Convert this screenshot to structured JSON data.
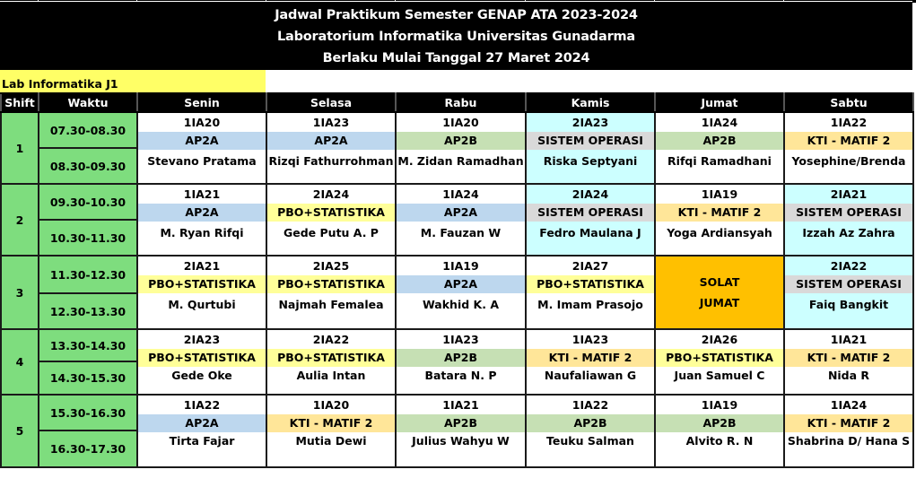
{
  "title": {
    "line1": "Jadwal Praktikum Semester GENAP ATA 2023-2024",
    "line2": "Laboratorium Informatika Universitas Gunadarma",
    "line3": "Berlaku Mulai Tanggal 27 Maret 2024"
  },
  "lab_label": "Lab Informatika J1",
  "headers": [
    "Shift",
    "Waktu",
    "Senin",
    "Selasa",
    "Rabu",
    "Kamis",
    "Jumat",
    "Sabtu"
  ],
  "colors": {
    "header_bg": "#000000",
    "time_bg": "#7edd7e",
    "lab_label_bg": "#ffff66",
    "AP2A": "#bdd7ee",
    "AP2B": "#c6e0b4",
    "SISTEM OPERASI": "#d9d9d9",
    "PBO+STATISTIKA": "#ffff99",
    "KTI - MATIF 2": "#ffe699",
    "kamis_cell_bg": "#ccffff",
    "solat_bg": "#ffc000"
  },
  "shifts": [
    {
      "number": "1",
      "times": [
        "07.30-08.30",
        "08.30-09.30"
      ],
      "slots": [
        {
          "day": "Senin",
          "class": "1IA20",
          "subject": "AP2A",
          "lecturer": "Stevano Pratama"
        },
        {
          "day": "Selasa",
          "class": "1IA23",
          "subject": "AP2A",
          "lecturer": "Rizqi Fathurrohman"
        },
        {
          "day": "Rabu",
          "class": "1IA20",
          "subject": "AP2B",
          "lecturer": "M. Zidan  Ramadhan"
        },
        {
          "day": "Kamis",
          "class": "2IA23",
          "subject": "SISTEM OPERASI",
          "lecturer": "Riska Septyani"
        },
        {
          "day": "Jumat",
          "class": "1IA24",
          "subject": "AP2B",
          "lecturer": "Rifqi Ramadhani"
        },
        {
          "day": "Sabtu",
          "class": "1IA22",
          "subject": "KTI - MATIF 2",
          "lecturer": "Yosephine/Brenda"
        }
      ]
    },
    {
      "number": "2",
      "times": [
        "09.30-10.30",
        "10.30-11.30"
      ],
      "slots": [
        {
          "day": "Senin",
          "class": "1IA21",
          "subject": "AP2A",
          "lecturer": "M. Ryan Rifqi"
        },
        {
          "day": "Selasa",
          "class": "2IA24",
          "subject": "PBO+STATISTIKA",
          "lecturer": "Gede Putu A. P"
        },
        {
          "day": "Rabu",
          "class": "1IA24",
          "subject": "AP2A",
          "lecturer": "M. Fauzan W"
        },
        {
          "day": "Kamis",
          "class": "2IA24",
          "subject": "SISTEM OPERASI",
          "lecturer": "Fedro Maulana J"
        },
        {
          "day": "Jumat",
          "class": "1IA19",
          "subject": "KTI - MATIF 2",
          "lecturer": "Yoga Ardiansyah"
        },
        {
          "day": "Sabtu",
          "class": "2IA21",
          "subject": "SISTEM OPERASI",
          "lecturer": "Izzah Az Zahra"
        }
      ]
    },
    {
      "number": "3",
      "times": [
        "11.30-12.30",
        "12.30-13.30"
      ],
      "slots": [
        {
          "day": "Senin",
          "class": "2IA21",
          "subject": "PBO+STATISTIKA",
          "lecturer": "M. Qurtubi"
        },
        {
          "day": "Selasa",
          "class": "2IA25",
          "subject": "PBO+STATISTIKA",
          "lecturer": "Najmah Femalea"
        },
        {
          "day": "Rabu",
          "class": "1IA19",
          "subject": "AP2A",
          "lecturer": "Wakhid K. A"
        },
        {
          "day": "Kamis",
          "class": "2IA27",
          "subject": "PBO+STATISTIKA",
          "lecturer": "M. Imam Prasojo"
        },
        {
          "day": "Jumat",
          "solat": [
            "SOLAT",
            "JUMAT"
          ]
        },
        {
          "day": "Sabtu",
          "class": "2IA22",
          "subject": "SISTEM OPERASI",
          "lecturer": "Faiq Bangkit"
        }
      ]
    },
    {
      "number": "4",
      "times": [
        "13.30-14.30",
        "14.30-15.30"
      ],
      "slots": [
        {
          "day": "Senin",
          "class": "2IA23",
          "subject": "PBO+STATISTIKA",
          "lecturer": "Gede Oke"
        },
        {
          "day": "Selasa",
          "class": "2IA22",
          "subject": "PBO+STATISTIKA",
          "lecturer": "Aulia Intan"
        },
        {
          "day": "Rabu",
          "class": "1IA23",
          "subject": "AP2B",
          "lecturer": "Batara N. P"
        },
        {
          "day": "Kamis",
          "class": "1IA23",
          "subject": "KTI - MATIF 2",
          "lecturer": "Naufaliawan G"
        },
        {
          "day": "Jumat",
          "class": "2IA26",
          "subject": "PBO+STATISTIKA",
          "lecturer": "Juan Samuel C"
        },
        {
          "day": "Sabtu",
          "class": "1IA21",
          "subject": "KTI - MATIF 2",
          "lecturer": "Nida R"
        }
      ]
    },
    {
      "number": "5",
      "times": [
        "15.30-16.30",
        "16.30-17.30"
      ],
      "slots": [
        {
          "day": "Senin",
          "class": "1IA22",
          "subject": "AP2A",
          "lecturer": "Tirta Fajar"
        },
        {
          "day": "Selasa",
          "class": "1IA20",
          "subject": "KTI - MATIF 2",
          "lecturer": "Mutia Dewi"
        },
        {
          "day": "Rabu",
          "class": "1IA21",
          "subject": "AP2B",
          "lecturer": "Julius Wahyu W"
        },
        {
          "day": "Kamis",
          "class": "1IA22",
          "subject": "AP2B",
          "lecturer": "Teuku Salman"
        },
        {
          "day": "Jumat",
          "class": "1IA19",
          "subject": "AP2B",
          "lecturer": "Alvito R. N"
        },
        {
          "day": "Sabtu",
          "class": "1IA24",
          "subject": "KTI - MATIF 2",
          "lecturer": "Shabrina D/ Hana S"
        }
      ]
    }
  ]
}
